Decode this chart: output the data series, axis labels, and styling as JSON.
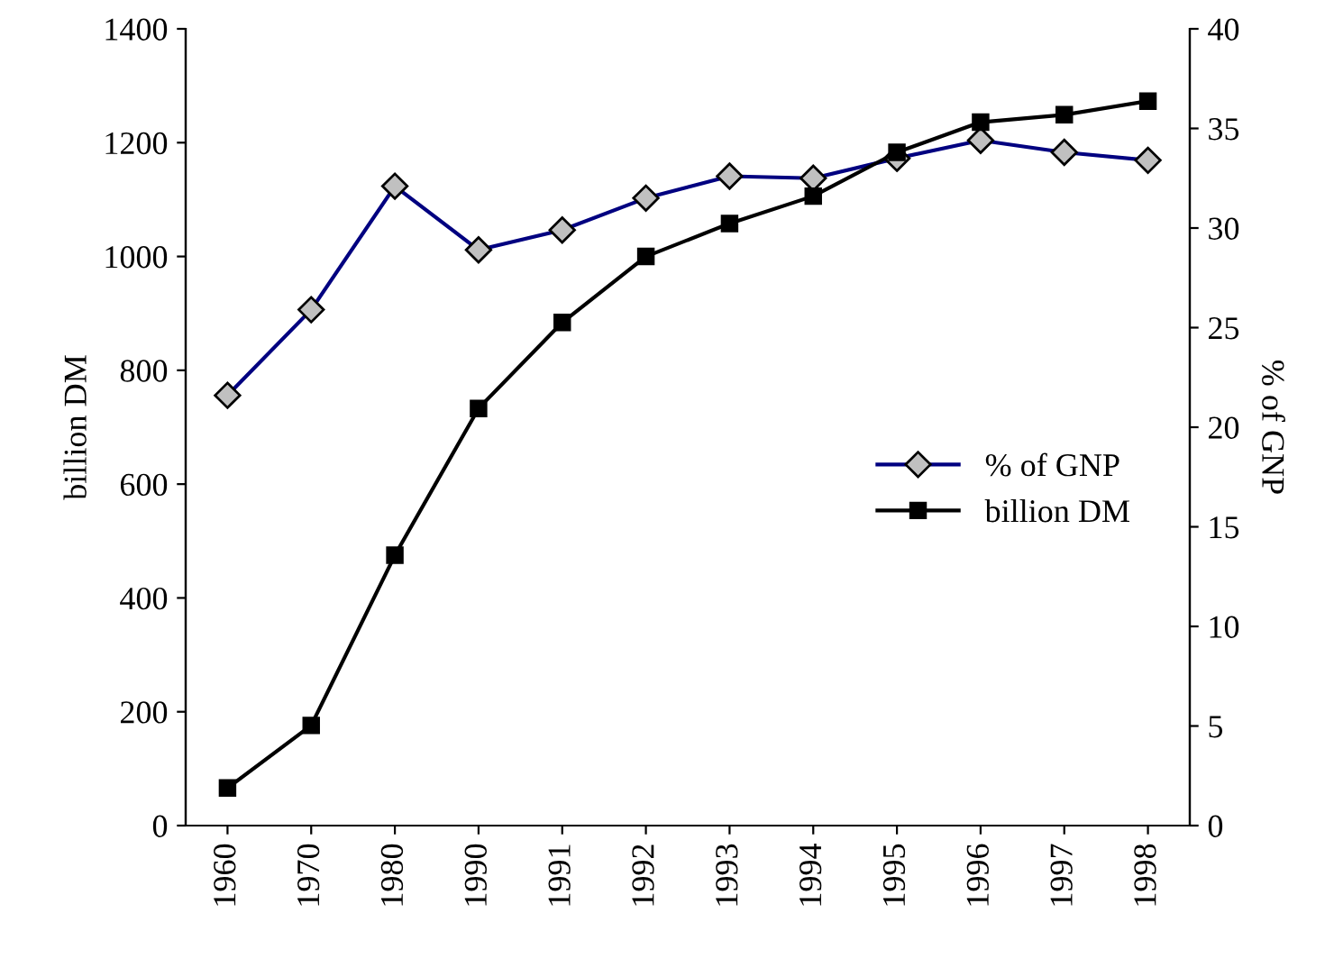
{
  "chart_data": {
    "type": "line",
    "categories": [
      "1960",
      "1970",
      "1980",
      "1990",
      "1991",
      "1992",
      "1993",
      "1994",
      "1995",
      "1996",
      "1997",
      "1998"
    ],
    "series": [
      {
        "name": "% of GNP",
        "color": "#000080",
        "axis": "y2",
        "marker": "diamond",
        "values": [
          21.6,
          25.9,
          32.1,
          28.9,
          29.9,
          31.5,
          32.6,
          32.5,
          33.5,
          34.4,
          33.8,
          33.4
        ]
      },
      {
        "name": "billion DM",
        "color": "#000000",
        "marker": "square",
        "values": [
          66,
          176,
          475,
          733,
          884,
          1000,
          1058,
          1106,
          1183,
          1236,
          1249,
          1273
        ]
      }
    ],
    "ylabel": "billion DM",
    "y2label": "% of GNP",
    "ylim": [
      0,
      1400
    ],
    "yticks": [
      0,
      200,
      400,
      600,
      800,
      1000,
      1200,
      1400
    ],
    "y2lim": [
      0,
      40
    ],
    "y2ticks": [
      0,
      5,
      10,
      15,
      20,
      25,
      30,
      35,
      40
    ],
    "grid": false,
    "legend": "center right",
    "line_style": "solid"
  }
}
